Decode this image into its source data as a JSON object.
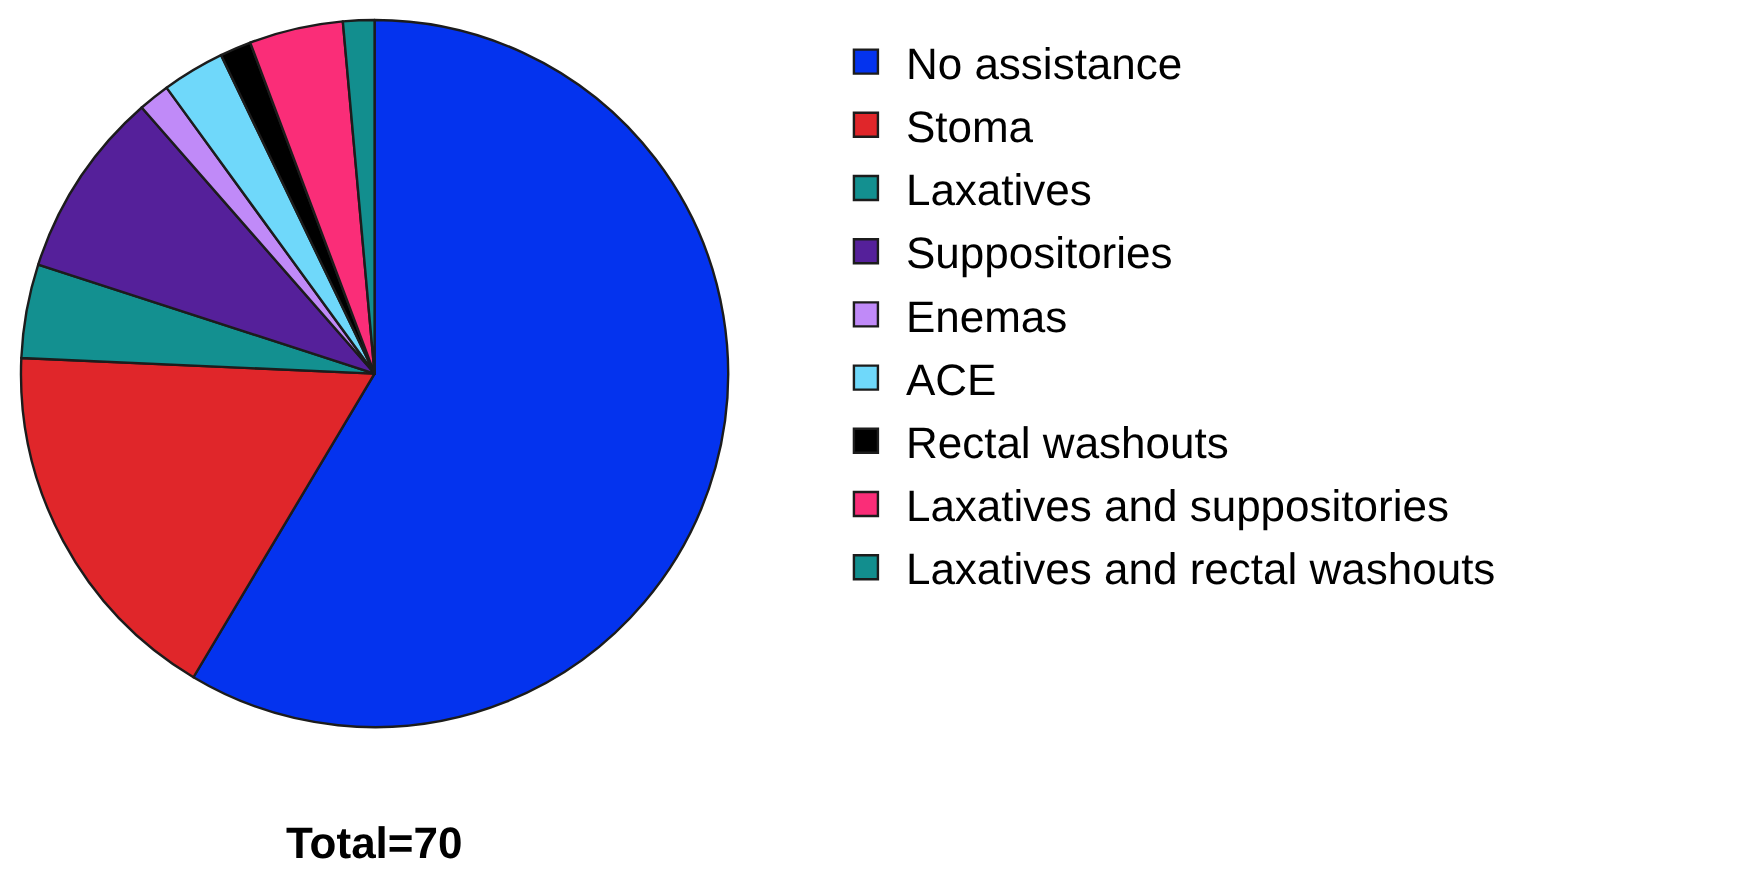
{
  "chart_data": {
    "type": "pie",
    "categories": [
      "No assistance",
      "Stoma",
      "Laxatives",
      "Suppositories",
      "Enemas",
      "ACE",
      "Rectal washouts",
      "Laxatives and suppositories",
      "Laxatives and rectal washouts"
    ],
    "values": [
      58.56,
      17.14,
      4.29,
      8.57,
      1.43,
      2.86,
      1.43,
      4.29,
      1.43
    ],
    "colors": [
      "#0433ee",
      "#e0262a",
      "#139090",
      "#55209a",
      "#c08af8",
      "#6fd8fa",
      "#000000",
      "#fa2d78",
      "#128e8e"
    ],
    "annotations": [
      "Total=70"
    ],
    "legend": "right"
  }
}
